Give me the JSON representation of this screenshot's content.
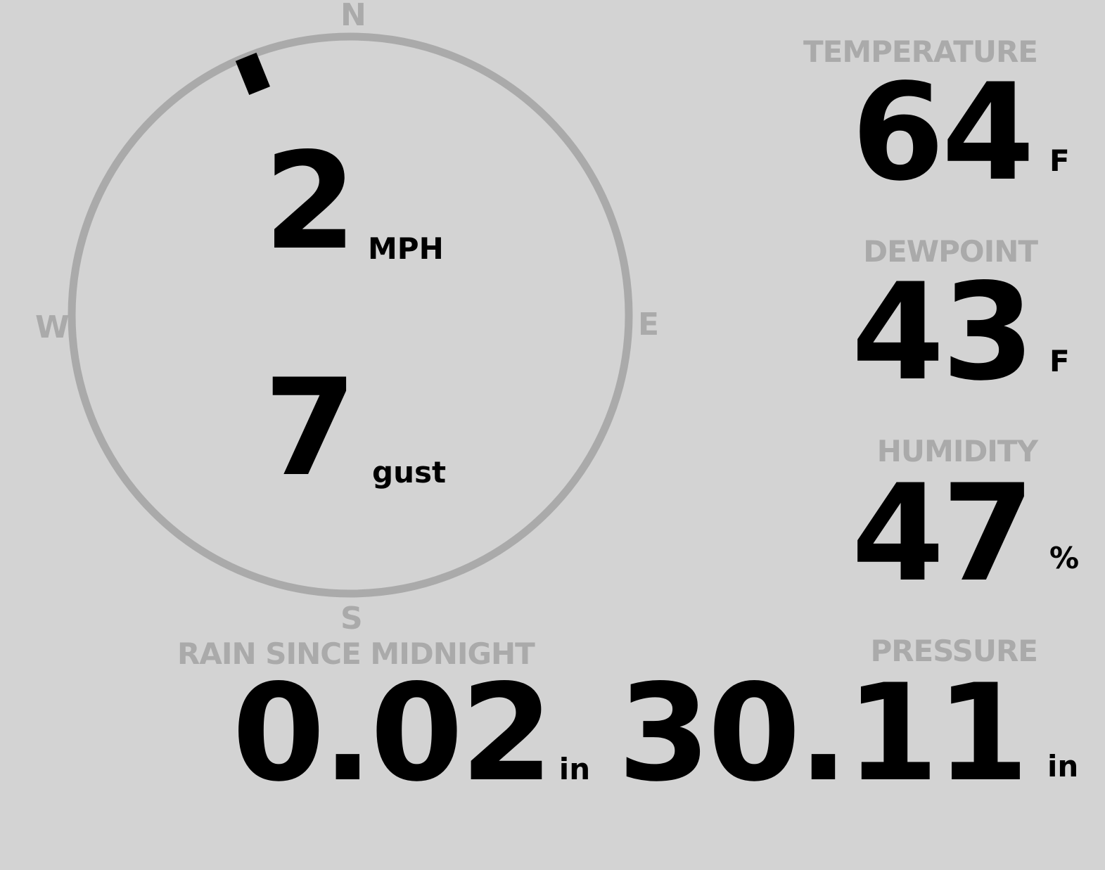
{
  "colors": {
    "background": "#d3d3d3",
    "label": "#aaaaaa",
    "value": "#000000"
  },
  "wind": {
    "direction_degrees": 338,
    "speed": "2",
    "speed_unit": "MPH",
    "gust": "7",
    "gust_unit": "gust",
    "cardinals": {
      "n": "N",
      "e": "E",
      "s": "S",
      "w": "W"
    }
  },
  "temperature": {
    "label": "TEMPERATURE",
    "value": "64",
    "unit": "F"
  },
  "dewpoint": {
    "label": "DEWPOINT",
    "value": "43",
    "unit": "F"
  },
  "humidity": {
    "label": "HUMIDITY",
    "value": "47",
    "unit": "%"
  },
  "rain": {
    "label": "RAIN SINCE MIDNIGHT",
    "value": "0.02",
    "unit": "in"
  },
  "pressure": {
    "label": "PRESSURE",
    "value": "30.11",
    "unit": "in"
  }
}
